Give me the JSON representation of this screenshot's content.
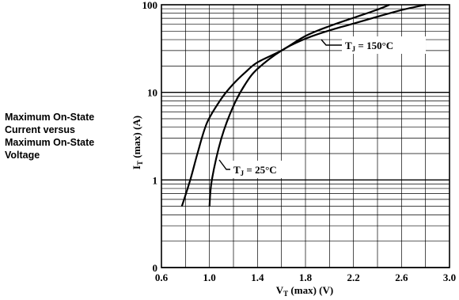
{
  "side_title_lines": [
    "Maximum On-State",
    "Current versus",
    "Maximum On-State",
    "Voltage"
  ],
  "chart_data": {
    "type": "line",
    "title": "Maximum On-State Current versus Maximum On-State Voltage",
    "xlabel": {
      "main": "V",
      "sub": "T",
      "rest": " (max) (V)"
    },
    "ylabel": {
      "main": "I",
      "sub": "T",
      "rest": " (max) (A)"
    },
    "xlim": [
      0.6,
      3.0
    ],
    "ylim_decades": [
      0,
      100
    ],
    "y_scale": "log",
    "x_ticks": [
      "0.6",
      "1.0",
      "1.4",
      "1.8",
      "2.2",
      "2.6",
      "3.0"
    ],
    "y_ticks": [
      "0",
      "1",
      "10",
      "100"
    ],
    "grid": true,
    "series": [
      {
        "key": "tj25",
        "name": "T_J = 25°C",
        "label": {
          "main": "T",
          "sub": "J",
          "rest": " = 25°C"
        },
        "points": [
          [
            1.0,
            0.5
          ],
          [
            1.02,
            1.0
          ],
          [
            1.1,
            3.0
          ],
          [
            1.2,
            7.0
          ],
          [
            1.3,
            12.5
          ],
          [
            1.4,
            18.5
          ],
          [
            1.6,
            30.0
          ],
          [
            1.8,
            41.0
          ],
          [
            2.0,
            51.0
          ],
          [
            2.2,
            61.0
          ],
          [
            2.4,
            73.0
          ],
          [
            2.6,
            87.0
          ],
          [
            2.8,
            100.0
          ]
        ]
      },
      {
        "key": "tj150",
        "name": "T_J = 150°C",
        "label": {
          "main": "T",
          "sub": "J",
          "rest": " = 150°C"
        },
        "points": [
          [
            0.77,
            0.5
          ],
          [
            0.84,
            1.0
          ],
          [
            0.9,
            2.0
          ],
          [
            0.98,
            4.5
          ],
          [
            1.1,
            8.5
          ],
          [
            1.2,
            12.5
          ],
          [
            1.3,
            17.0
          ],
          [
            1.4,
            22.0
          ],
          [
            1.6,
            30.0
          ],
          [
            1.8,
            44.0
          ],
          [
            2.0,
            57.0
          ],
          [
            2.2,
            71.0
          ],
          [
            2.4,
            88.0
          ],
          [
            2.5,
            100.0
          ]
        ]
      }
    ]
  }
}
